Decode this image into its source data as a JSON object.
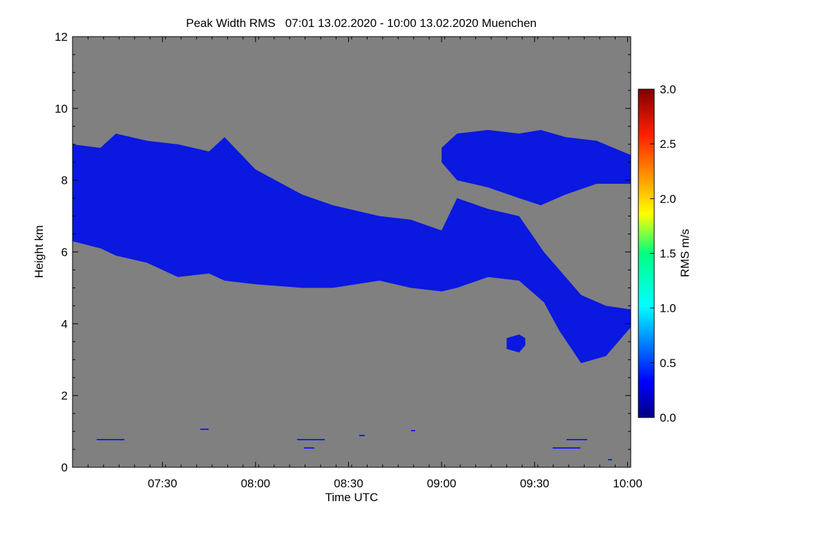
{
  "chart_data": {
    "type": "heatmap",
    "title": "Peak Width RMS   07:01 13.02.2020 - 10:00 13.02.2020 Muenchen",
    "xlabel": "Time UTC",
    "ylabel": "Height km",
    "xlim": [
      "07:01",
      "10:01"
    ],
    "ylim": [
      0,
      12
    ],
    "x_ticks": [
      "07:30",
      "08:00",
      "08:30",
      "09:00",
      "09:30",
      "10:00"
    ],
    "y_ticks": [
      "0",
      "2",
      "4",
      "6",
      "8",
      "10",
      "12"
    ],
    "colorbar": {
      "label": "RMS m/s",
      "range": [
        0.0,
        3.0
      ],
      "ticks": [
        "0.0",
        "0.5",
        "1.0",
        "1.5",
        "2.0",
        "2.5",
        "3.0"
      ]
    },
    "background_color": "#808080",
    "layers": [
      {
        "description_value": "rms ≈ 0.2 m/s",
        "value": 0.2,
        "boundary": [
          {
            "t": "07:01",
            "lo": 6.3,
            "hi": 9.0
          },
          {
            "t": "07:10",
            "lo": 6.1,
            "hi": 8.9
          },
          {
            "t": "07:15",
            "lo": 5.9,
            "hi": 9.3
          },
          {
            "t": "07:25",
            "lo": 5.7,
            "hi": 9.1
          },
          {
            "t": "07:35",
            "lo": 5.3,
            "hi": 9.0
          },
          {
            "t": "07:45",
            "lo": 5.4,
            "hi": 8.8
          },
          {
            "t": "07:50",
            "lo": 5.2,
            "hi": 9.2
          },
          {
            "t": "08:00",
            "lo": 5.1,
            "hi": 8.3
          },
          {
            "t": "08:15",
            "lo": 5.0,
            "hi": 7.6
          },
          {
            "t": "08:25",
            "lo": 5.0,
            "hi": 7.3
          },
          {
            "t": "08:40",
            "lo": 5.2,
            "hi": 7.0
          },
          {
            "t": "08:50",
            "lo": 5.0,
            "hi": 6.9
          },
          {
            "t": "09:00",
            "lo": 4.9,
            "hi": 6.6
          },
          {
            "t": "09:05",
            "lo": 5.0,
            "hi": 7.5
          },
          {
            "t": "09:15",
            "lo": 5.3,
            "hi": 7.2
          },
          {
            "t": "09:25",
            "lo": 5.2,
            "hi": 7.0
          },
          {
            "t": "09:33",
            "lo": 4.6,
            "hi": 6.0
          },
          {
            "t": "09:38",
            "lo": 3.8,
            "hi": 5.5
          },
          {
            "t": "09:45",
            "lo": 2.9,
            "hi": 4.8
          },
          {
            "t": "09:53",
            "lo": 3.1,
            "hi": 4.5
          },
          {
            "t": "10:01",
            "lo": 3.9,
            "hi": 4.4
          }
        ]
      },
      {
        "description_value": "rms ≈ 0.2 m/s",
        "value": 0.2,
        "boundary": [
          {
            "t": "09:00",
            "lo": 8.5,
            "hi": 8.9
          },
          {
            "t": "09:05",
            "lo": 8.0,
            "hi": 9.3
          },
          {
            "t": "09:15",
            "lo": 7.8,
            "hi": 9.4
          },
          {
            "t": "09:25",
            "lo": 7.5,
            "hi": 9.3
          },
          {
            "t": "09:32",
            "lo": 7.3,
            "hi": 9.4
          },
          {
            "t": "09:40",
            "lo": 7.6,
            "hi": 9.2
          },
          {
            "t": "09:50",
            "lo": 7.9,
            "hi": 9.1
          },
          {
            "t": "10:01",
            "lo": 7.9,
            "hi": 8.7
          }
        ]
      },
      {
        "value": 0.2,
        "boundary": [
          {
            "t": "09:21",
            "lo": 3.3,
            "hi": 3.6
          },
          {
            "t": "09:25",
            "lo": 3.2,
            "hi": 3.7
          },
          {
            "t": "09:27",
            "lo": 3.4,
            "hi": 3.6
          }
        ]
      }
    ]
  }
}
